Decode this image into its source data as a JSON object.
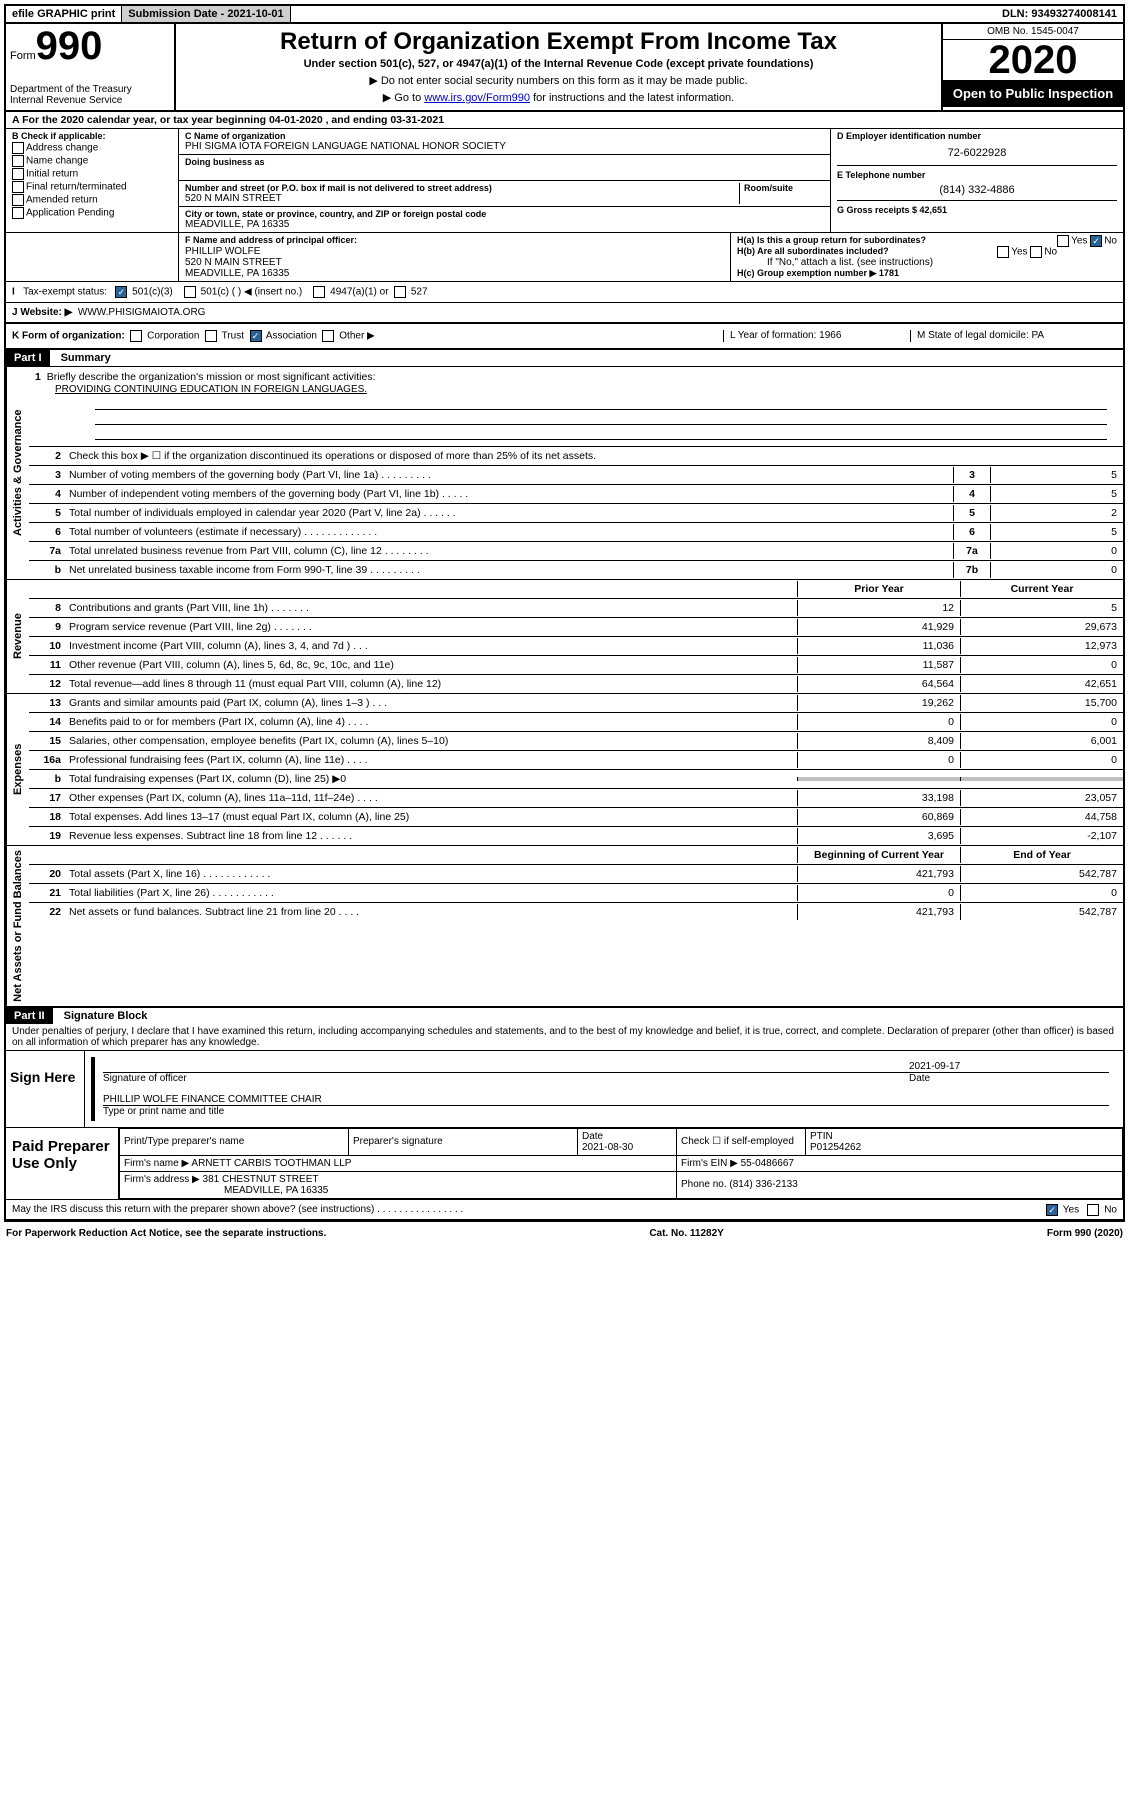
{
  "top": {
    "efile": "efile GRAPHIC print",
    "submission_label": "Submission Date - 2021-10-01",
    "dln": "DLN: 93493274008141"
  },
  "header": {
    "form_label": "Form",
    "form_num": "990",
    "dept1": "Department of the Treasury",
    "dept2": "Internal Revenue Service",
    "title": "Return of Organization Exempt From Income Tax",
    "subtitle": "Under section 501(c), 527, or 4947(a)(1) of the Internal Revenue Code (except private foundations)",
    "note1": "▶ Do not enter social security numbers on this form as it may be made public.",
    "note2_pre": "▶ Go to ",
    "note2_link": "www.irs.gov/Form990",
    "note2_post": " for instructions and the latest information.",
    "omb": "OMB No. 1545-0047",
    "year": "2020",
    "open": "Open to Public Inspection"
  },
  "period": "A For the 2020 calendar year, or tax year beginning 04-01-2020    , and ending 03-31-2021",
  "sectionB": {
    "label": "B Check if applicable:",
    "items": [
      "Address change",
      "Name change",
      "Initial return",
      "Final return/terminated",
      "Amended return",
      "Application Pending"
    ]
  },
  "sectionC": {
    "name_label": "C Name of organization",
    "name": "PHI SIGMA IOTA FOREIGN LANGUAGE NATIONAL HONOR SOCIETY",
    "dba_label": "Doing business as",
    "addr_label": "Number and street (or P.O. box if mail is not delivered to street address)",
    "room_label": "Room/suite",
    "addr": "520 N MAIN STREET",
    "city_label": "City or town, state or province, country, and ZIP or foreign postal code",
    "city": "MEADVILLE, PA  16335"
  },
  "sectionD": {
    "ein_label": "D Employer identification number",
    "ein": "72-6022928",
    "phone_label": "E Telephone number",
    "phone": "(814) 332-4886",
    "gross_label": "G Gross receipts $ 42,651"
  },
  "sectionF": {
    "label": "F  Name and address of principal officer:",
    "name": "PHILLIP WOLFE",
    "addr1": "520 N MAIN STREET",
    "addr2": "MEADVILLE, PA  16335"
  },
  "sectionH": {
    "ha": "H(a)  Is this a group return for subordinates?",
    "hb": "H(b)  Are all subordinates included?",
    "hb_note": "If \"No,\" attach a list. (see instructions)",
    "hc": "H(c)  Group exemption number ▶   1781"
  },
  "tax_exempt": {
    "label": "Tax-exempt status:",
    "opt1": "501(c)(3)",
    "opt2": "501(c) (   ) ◀ (insert no.)",
    "opt3": "4947(a)(1) or",
    "opt4": "527"
  },
  "lineJ": {
    "label": "J  Website: ▶",
    "val": "WWW.PHISIGMAIOTA.ORG"
  },
  "lineK": {
    "label": "K Form of organization:",
    "opts": [
      "Corporation",
      "Trust",
      "Association",
      "Other ▶"
    ],
    "L": "L Year of formation: 1966",
    "M": "M State of legal domicile: PA"
  },
  "part1": {
    "header": "Part I",
    "title": "Summary",
    "vert_gov": "Activities & Governance",
    "vert_rev": "Revenue",
    "vert_exp": "Expenses",
    "vert_net": "Net Assets or Fund Balances",
    "line1_label": "Briefly describe the organization's mission or most significant activities:",
    "line1_text": "PROVIDING CONTINUING EDUCATION IN FOREIGN LANGUAGES.",
    "line2": "Check this box ▶ ☐  if the organization discontinued its operations or disposed of more than 25% of its net assets.",
    "gov_lines": [
      {
        "n": "3",
        "t": "Number of voting members of the governing body (Part VI, line 1a)   .    .    .    .    .    .    .    .    .",
        "box": "3",
        "v": "5"
      },
      {
        "n": "4",
        "t": "Number of independent voting members of the governing body (Part VI, line 1b)   .    .    .    .    .",
        "box": "4",
        "v": "5"
      },
      {
        "n": "5",
        "t": "Total number of individuals employed in calendar year 2020 (Part V, line 2a)   .    .    .    .    .    .",
        "box": "5",
        "v": "2"
      },
      {
        "n": "6",
        "t": "Total number of volunteers (estimate if necessary)   .    .    .    .    .    .    .    .    .    .    .    .    .",
        "box": "6",
        "v": "5"
      },
      {
        "n": "7a",
        "t": "Total unrelated business revenue from Part VIII, column (C), line 12   .    .    .    .    .    .    .    .",
        "box": "7a",
        "v": "0"
      },
      {
        "n": "b",
        "t": "Net unrelated business taxable income from Form 990-T, line 39   .    .    .    .    .    .    .    .    .",
        "box": "7b",
        "v": "0"
      }
    ],
    "py_hdr": "Prior Year",
    "cy_hdr": "Current Year",
    "rev_lines": [
      {
        "n": "8",
        "t": "Contributions and grants (Part VIII, line 1h)   .    .    .    .    .    .    .",
        "py": "12",
        "cy": "5"
      },
      {
        "n": "9",
        "t": "Program service revenue (Part VIII, line 2g)   .    .    .    .    .    .    .",
        "py": "41,929",
        "cy": "29,673"
      },
      {
        "n": "10",
        "t": "Investment income (Part VIII, column (A), lines 3, 4, and 7d )   .    .    .",
        "py": "11,036",
        "cy": "12,973"
      },
      {
        "n": "11",
        "t": "Other revenue (Part VIII, column (A), lines 5, 6d, 8c, 9c, 10c, and 11e)",
        "py": "11,587",
        "cy": "0"
      },
      {
        "n": "12",
        "t": "Total revenue—add lines 8 through 11 (must equal Part VIII, column (A), line 12)",
        "py": "64,564",
        "cy": "42,651"
      }
    ],
    "exp_lines": [
      {
        "n": "13",
        "t": "Grants and similar amounts paid (Part IX, column (A), lines 1–3 )   .    .    .",
        "py": "19,262",
        "cy": "15,700"
      },
      {
        "n": "14",
        "t": "Benefits paid to or for members (Part IX, column (A), line 4)   .    .    .    .",
        "py": "0",
        "cy": "0"
      },
      {
        "n": "15",
        "t": "Salaries, other compensation, employee benefits (Part IX, column (A), lines 5–10)",
        "py": "8,409",
        "cy": "6,001"
      },
      {
        "n": "16a",
        "t": "Professional fundraising fees (Part IX, column (A), line 11e)   .    .    .    .",
        "py": "0",
        "cy": "0"
      },
      {
        "n": "b",
        "t": "Total fundraising expenses (Part IX, column (D), line 25) ▶0",
        "py": "",
        "cy": "",
        "grey": true
      },
      {
        "n": "17",
        "t": "Other expenses (Part IX, column (A), lines 11a–11d, 11f–24e)   .    .    .    .",
        "py": "33,198",
        "cy": "23,057"
      },
      {
        "n": "18",
        "t": "Total expenses. Add lines 13–17 (must equal Part IX, column (A), line 25)",
        "py": "60,869",
        "cy": "44,758"
      },
      {
        "n": "19",
        "t": "Revenue less expenses. Subtract line 18 from line 12   .    .    .    .    .    .",
        "py": "3,695",
        "cy": "-2,107"
      }
    ],
    "boy_hdr": "Beginning of Current Year",
    "eoy_hdr": "End of Year",
    "net_lines": [
      {
        "n": "20",
        "t": "Total assets (Part X, line 16)   .    .    .    .    .    .    .    .    .    .    .    .",
        "py": "421,793",
        "cy": "542,787"
      },
      {
        "n": "21",
        "t": "Total liabilities (Part X, line 26)   .    .    .    .    .    .    .    .    .    .    .",
        "py": "0",
        "cy": "0"
      },
      {
        "n": "22",
        "t": "Net assets or fund balances. Subtract line 21 from line 20   .    .    .    .",
        "py": "421,793",
        "cy": "542,787"
      }
    ]
  },
  "part2": {
    "header": "Part II",
    "title": "Signature Block",
    "declaration": "Under penalties of perjury, I declare that I have examined this return, including accompanying schedules and statements, and to the best of my knowledge and belief, it is true, correct, and complete. Declaration of preparer (other than officer) is based on all information of which preparer has any knowledge.",
    "sign_here": "Sign Here",
    "sig_officer": "Signature of officer",
    "sig_date": "2021-09-17",
    "sig_date_label": "Date",
    "officer_name": "PHILLIP WOLFE  FINANCE COMMITTEE CHAIR",
    "type_label": "Type or print name and title",
    "paid_label": "Paid Preparer Use Only",
    "prep_name_label": "Print/Type preparer's name",
    "prep_sig_label": "Preparer's signature",
    "prep_date_label": "Date",
    "prep_date": "2021-08-30",
    "check_label": "Check ☐ if self-employed",
    "ptin_label": "PTIN",
    "ptin": "P01254262",
    "firm_name_label": "Firm's name      ▶",
    "firm_name": "ARNETT CARBIS TOOTHMAN LLP",
    "firm_ein_label": "Firm's EIN ▶",
    "firm_ein": "55-0486667",
    "firm_addr_label": "Firm's address ▶",
    "firm_addr1": "381 CHESTNUT STREET",
    "firm_addr2": "MEADVILLE, PA  16335",
    "firm_phone_label": "Phone no.",
    "firm_phone": "(814) 336-2133",
    "discuss": "May the IRS discuss this return with the preparer shown above? (see instructions)   .    .    .    .    .    .    .    .    .    .    .    .    .    .    .    .",
    "yes": "Yes",
    "no": "No"
  },
  "footer": {
    "paperwork": "For Paperwork Reduction Act Notice, see the separate instructions.",
    "cat": "Cat. No. 11282Y",
    "form": "Form 990 (2020)"
  }
}
